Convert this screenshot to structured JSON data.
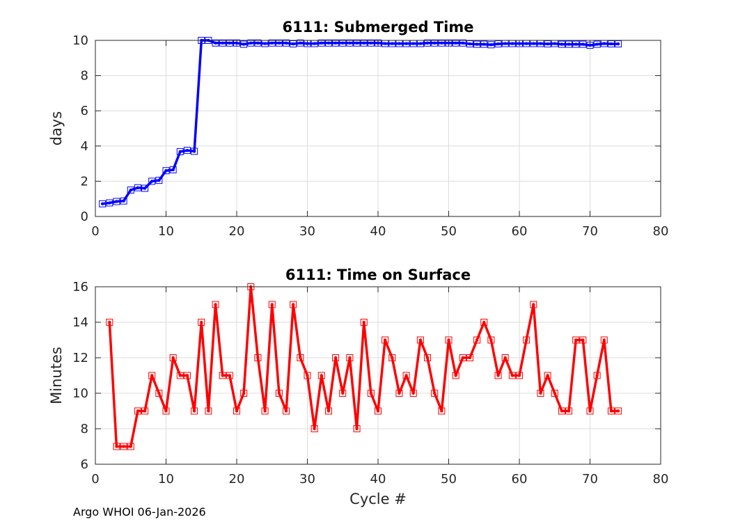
{
  "footer": "Argo WHOI 06-Jan-2026",
  "colors": {
    "top": "#0000ff",
    "bottom": "#ff0000"
  },
  "chart_data": [
    {
      "type": "line",
      "title": "6111: Submerged Time",
      "xlabel": "",
      "ylabel": "days",
      "xlim": [
        0,
        80
      ],
      "ylim": [
        0,
        10
      ],
      "xticks": [
        0,
        10,
        20,
        30,
        40,
        50,
        60,
        70,
        80
      ],
      "yticks": [
        0,
        2,
        4,
        6,
        8,
        10
      ],
      "grid": true,
      "x": [
        1,
        2,
        3,
        4,
        5,
        6,
        7,
        8,
        9,
        10,
        11,
        12,
        13,
        14,
        15,
        16,
        17,
        18,
        19,
        20,
        21,
        22,
        23,
        24,
        25,
        26,
        27,
        28,
        29,
        30,
        31,
        32,
        33,
        34,
        35,
        36,
        37,
        38,
        39,
        40,
        41,
        42,
        43,
        44,
        45,
        46,
        47,
        48,
        49,
        50,
        51,
        52,
        53,
        54,
        55,
        56,
        57,
        58,
        59,
        60,
        61,
        62,
        63,
        64,
        65,
        66,
        67,
        68,
        69,
        70,
        71,
        72,
        73,
        74
      ],
      "y": [
        0.72,
        0.77,
        0.85,
        0.88,
        1.5,
        1.63,
        1.6,
        2.0,
        2.05,
        2.6,
        2.65,
        3.68,
        3.75,
        3.7,
        10.0,
        10.0,
        9.85,
        9.85,
        9.85,
        9.85,
        9.78,
        9.85,
        9.85,
        9.82,
        9.85,
        9.85,
        9.85,
        9.8,
        9.85,
        9.82,
        9.82,
        9.85,
        9.85,
        9.85,
        9.85,
        9.85,
        9.85,
        9.85,
        9.85,
        9.85,
        9.82,
        9.82,
        9.82,
        9.82,
        9.82,
        9.82,
        9.85,
        9.85,
        9.85,
        9.85,
        9.85,
        9.85,
        9.8,
        9.78,
        9.78,
        9.75,
        9.8,
        9.82,
        9.82,
        9.82,
        9.82,
        9.82,
        9.82,
        9.8,
        9.82,
        9.78,
        9.78,
        9.78,
        9.78,
        9.72,
        9.78,
        9.82,
        9.8,
        9.8
      ]
    },
    {
      "type": "line",
      "title": "6111: Time on Surface",
      "xlabel": "Cycle #",
      "ylabel": "Minutes",
      "xlim": [
        0,
        80
      ],
      "ylim": [
        6,
        16
      ],
      "xticks": [
        0,
        10,
        20,
        30,
        40,
        50,
        60,
        70,
        80
      ],
      "yticks": [
        6,
        8,
        10,
        12,
        14,
        16
      ],
      "grid": true,
      "x": [
        2,
        3,
        4,
        5,
        6,
        7,
        8,
        9,
        10,
        11,
        12,
        13,
        14,
        15,
        16,
        17,
        18,
        19,
        20,
        21,
        22,
        23,
        24,
        25,
        26,
        27,
        28,
        29,
        30,
        31,
        32,
        33,
        34,
        35,
        36,
        37,
        38,
        39,
        40,
        41,
        42,
        43,
        44,
        45,
        46,
        47,
        48,
        49,
        50,
        51,
        52,
        53,
        54,
        55,
        56,
        57,
        58,
        59,
        60,
        61,
        62,
        63,
        64,
        65,
        66,
        67,
        68,
        69,
        70,
        71,
        72,
        73,
        74
      ],
      "y": [
        14,
        7,
        7,
        7,
        9,
        9,
        11,
        10,
        9,
        12,
        11,
        11,
        9,
        14,
        9,
        15,
        11,
        11,
        9,
        10,
        16,
        12,
        9,
        15,
        10,
        9,
        15,
        12,
        11,
        8,
        11,
        9,
        12,
        10,
        12,
        8,
        14,
        10,
        9,
        13,
        12,
        10,
        11,
        10,
        13,
        12,
        10,
        9,
        13,
        11,
        12,
        12,
        13,
        14,
        13,
        11,
        12,
        11,
        11,
        13,
        15,
        10,
        11,
        10,
        9,
        9,
        13,
        13,
        9,
        11,
        13,
        9,
        9
      ]
    }
  ]
}
